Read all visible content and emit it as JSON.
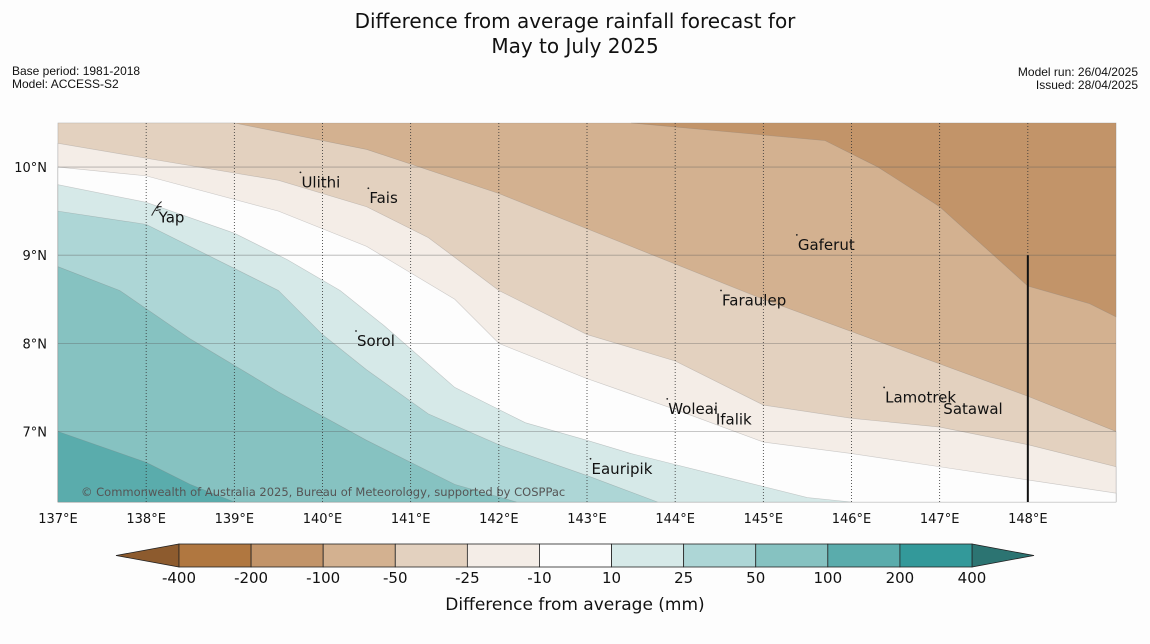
{
  "title": {
    "line1": "Difference from average rainfall forecast for",
    "line2": "May to July 2025"
  },
  "meta": {
    "base_period": "Base period: 1981-2018",
    "model": "Model: ACCESS-S2",
    "model_run": "Model run: 26/04/2025",
    "issued": "Issued: 28/04/2025"
  },
  "map": {
    "lon_range": [
      137,
      149
    ],
    "lat_range": [
      6.2,
      10.5
    ],
    "lon_ticks": [
      {
        "v": 137,
        "label": "137°E"
      },
      {
        "v": 138,
        "label": "138°E"
      },
      {
        "v": 139,
        "label": "139°E"
      },
      {
        "v": 140,
        "label": "140°E"
      },
      {
        "v": 141,
        "label": "141°E"
      },
      {
        "v": 142,
        "label": "142°E"
      },
      {
        "v": 143,
        "label": "143°E"
      },
      {
        "v": 144,
        "label": "144°E"
      },
      {
        "v": 145,
        "label": "145°E"
      },
      {
        "v": 146,
        "label": "146°E"
      },
      {
        "v": 147,
        "label": "147°E"
      },
      {
        "v": 148,
        "label": "148°E"
      }
    ],
    "lat_ticks": [
      {
        "v": 10,
        "label": "10°N"
      },
      {
        "v": 9,
        "label": "9°N"
      },
      {
        "v": 8,
        "label": "8°N"
      },
      {
        "v": 7,
        "label": "7°N"
      }
    ],
    "bands": [
      {
        "level": "-100 to -50",
        "color": "#d3b190",
        "boundary": [
          [
            137,
            10.5
          ],
          [
            149,
            10.5
          ]
        ]
      },
      {
        "level": "-50 to -25",
        "color": "#e3d1bf",
        "boundary": [
          [
            137,
            10.5
          ],
          [
            139,
            10.5
          ],
          [
            140.5,
            10.2
          ],
          [
            142,
            9.7
          ],
          [
            143.5,
            9.1
          ],
          [
            145,
            8.5
          ],
          [
            146.5,
            7.95
          ],
          [
            148,
            7.4
          ],
          [
            149,
            7.0
          ]
        ]
      },
      {
        "level": "-25 to -10",
        "color": "#f4ede7",
        "boundary": [
          [
            137,
            10.27
          ],
          [
            138,
            10.1
          ],
          [
            139.5,
            9.85
          ],
          [
            140.5,
            9.55
          ],
          [
            141.2,
            9.2
          ],
          [
            142,
            8.6
          ],
          [
            143,
            8.1
          ],
          [
            144,
            7.8
          ],
          [
            145,
            7.3
          ],
          [
            146,
            7.15
          ],
          [
            147,
            7.05
          ],
          [
            148,
            6.85
          ],
          [
            149,
            6.6
          ]
        ]
      },
      {
        "level": "-10 to 10",
        "color": "#fdfdfd",
        "boundary": [
          [
            137,
            10.0
          ],
          [
            138,
            9.9
          ],
          [
            139.5,
            9.5
          ],
          [
            140.5,
            9.1
          ],
          [
            141.5,
            8.5
          ],
          [
            142,
            8.0
          ],
          [
            143,
            7.6
          ],
          [
            144,
            7.25
          ],
          [
            145,
            6.88
          ],
          [
            146,
            6.75
          ],
          [
            147,
            6.6
          ],
          [
            148,
            6.45
          ],
          [
            149,
            6.3
          ]
        ]
      },
      {
        "level": "10 to 25",
        "color": "#d6e9e8",
        "boundary": [
          [
            137,
            9.8
          ],
          [
            138,
            9.6
          ],
          [
            139,
            9.25
          ],
          [
            139.6,
            8.95
          ],
          [
            140.2,
            8.6
          ],
          [
            140.7,
            8.2
          ],
          [
            141.5,
            7.5
          ],
          [
            142.3,
            7.1
          ],
          [
            143,
            6.9
          ],
          [
            143.5,
            6.75
          ],
          [
            144.5,
            6.5
          ],
          [
            145.5,
            6.25
          ],
          [
            146,
            6.2
          ]
        ]
      },
      {
        "level": "25 to 50",
        "color": "#add6d6",
        "boundary": [
          [
            137,
            9.5
          ],
          [
            138,
            9.35
          ],
          [
            139,
            8.85
          ],
          [
            139.5,
            8.6
          ],
          [
            140,
            8.1
          ],
          [
            140.5,
            7.7
          ],
          [
            141.2,
            7.2
          ],
          [
            142,
            6.85
          ],
          [
            143,
            6.5
          ],
          [
            143.8,
            6.2
          ]
        ]
      },
      {
        "level": "50 to 100",
        "color": "#86c2c1",
        "boundary": [
          [
            137,
            8.87
          ],
          [
            137.7,
            8.6
          ],
          [
            138.5,
            8.05
          ],
          [
            139.5,
            7.45
          ],
          [
            140.5,
            6.9
          ],
          [
            141.5,
            6.4
          ],
          [
            142.2,
            6.2
          ]
        ]
      },
      {
        "level": "100 to 200",
        "color": "#5aacac",
        "boundary": [
          [
            137,
            7.0
          ],
          [
            138,
            6.65
          ],
          [
            138.5,
            6.4
          ],
          [
            139,
            6.2
          ]
        ]
      },
      {
        "level": "-200 to -100",
        "color": "#c29469",
        "boundary": [
          [
            143.5,
            10.5
          ],
          [
            145.7,
            10.3
          ],
          [
            146.3,
            10.0
          ],
          [
            147,
            9.55
          ],
          [
            148,
            8.65
          ],
          [
            148.7,
            8.45
          ],
          [
            149,
            8.3
          ],
          [
            149,
            10.5
          ]
        ]
      }
    ],
    "islands": [
      {
        "name": "Ulithi",
        "lon": 139.75,
        "lat": 9.94
      },
      {
        "name": "Fais",
        "lon": 140.52,
        "lat": 9.76
      },
      {
        "name": "Yap",
        "lon": 138.13,
        "lat": 9.54
      },
      {
        "name": "Gaferut",
        "lon": 145.38,
        "lat": 9.23
      },
      {
        "name": "Faraulep",
        "lon": 144.52,
        "lat": 8.6
      },
      {
        "name": "Sorol",
        "lon": 140.38,
        "lat": 8.14
      },
      {
        "name": "Woleai",
        "lon": 143.91,
        "lat": 7.37
      },
      {
        "name": "Ifalik",
        "lon": 144.45,
        "lat": 7.25
      },
      {
        "name": "Lamotrek",
        "lon": 146.37,
        "lat": 7.5
      },
      {
        "name": "Satawal",
        "lon": 147.03,
        "lat": 7.37
      },
      {
        "name": "Eauripik",
        "lon": 143.04,
        "lat": 6.69
      }
    ],
    "boundary_line_lon": 148,
    "copyright": "© Commonwealth of Australia 2025, Bureau of Meteorology, supported by COSPPac"
  },
  "legend": {
    "title": "Difference from average (mm)",
    "tick_labels": [
      "-400",
      "-200",
      "-100",
      "-50",
      "-25",
      "-10",
      "10",
      "25",
      "50",
      "100",
      "200",
      "400"
    ],
    "low_extend_color": "#8d5b2e",
    "high_extend_color": "#2c7472",
    "colors": [
      "#b07740",
      "#c29469",
      "#d3b190",
      "#e3d1bf",
      "#f4ede7",
      "#fdfdfd",
      "#d6e9e8",
      "#add6d6",
      "#86c2c1",
      "#5aacac",
      "#33999a"
    ]
  }
}
